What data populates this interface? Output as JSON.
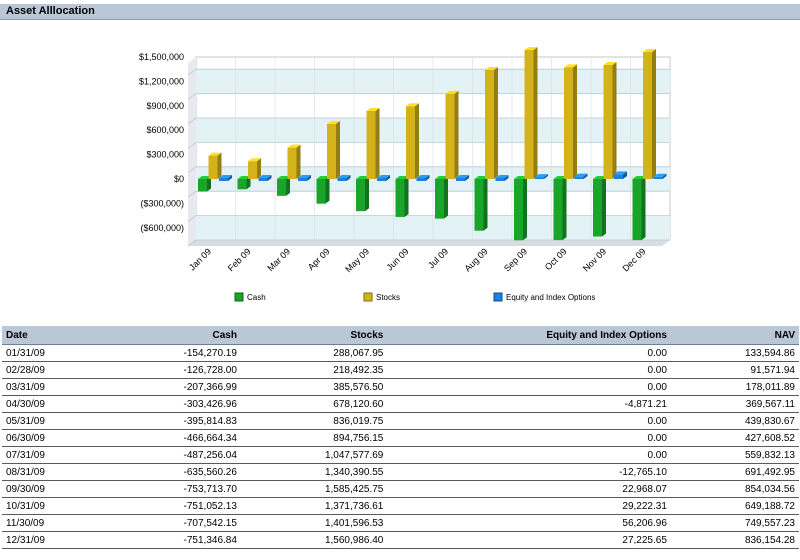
{
  "section_title": "Asset Alllocation",
  "chart_data": {
    "type": "bar",
    "categories": [
      "Jan 09",
      "Feb 09",
      "Mar 09",
      "Apr 09",
      "May 09",
      "Jun 09",
      "Jul 09",
      "Aug 09",
      "Sep 09",
      "Oct 09",
      "Nov 09",
      "Dec 09"
    ],
    "series": [
      {
        "name": "Cash",
        "color": "#1aa52a",
        "values": [
          -154270.19,
          -126728.0,
          -207366.99,
          -303426.96,
          -395814.83,
          -466664.34,
          -487256.04,
          -635560.26,
          -753713.7,
          -751052.13,
          -707542.15,
          -751346.84
        ]
      },
      {
        "name": "Stocks",
        "color": "#d4b21a",
        "values": [
          288067.95,
          218492.35,
          385576.5,
          678120.6,
          836019.75,
          894756.15,
          1047577.69,
          1340390.55,
          1585425.75,
          1371736.61,
          1401596.53,
          1560986.4
        ]
      },
      {
        "name": "Equity and Index Options",
        "color": "#1f7fe0",
        "values": [
          0,
          0,
          0,
          -4871.21,
          0,
          0,
          0,
          -12765.1,
          22968.07,
          29222.31,
          56206.96,
          27225.65
        ]
      }
    ],
    "y_ticks": [
      "$1,500,000",
      "$1,200,000",
      "$900,000",
      "$600,000",
      "$300,000",
      "$0",
      "($300,000)",
      "($600,000)"
    ],
    "ylim": [
      -750000,
      1500000
    ],
    "grid": true,
    "legend_position": "bottom"
  },
  "table": {
    "headers": [
      "Date",
      "Cash",
      "Stocks",
      "Equity and Index Options",
      "NAV"
    ],
    "rows": [
      [
        "01/31/09",
        "-154,270.19",
        "288,067.95",
        "0.00",
        "133,594.86"
      ],
      [
        "02/28/09",
        "-126,728.00",
        "218,492.35",
        "0.00",
        "91,571.94"
      ],
      [
        "03/31/09",
        "-207,366.99",
        "385,576.50",
        "0.00",
        "178,011.89"
      ],
      [
        "04/30/09",
        "-303,426.96",
        "678,120.60",
        "-4,871.21",
        "369,567.11"
      ],
      [
        "05/31/09",
        "-395,814.83",
        "836,019.75",
        "0.00",
        "439,830.67"
      ],
      [
        "06/30/09",
        "-466,664.34",
        "894,756.15",
        "0.00",
        "427,608.52"
      ],
      [
        "07/31/09",
        "-487,256.04",
        "1,047,577.69",
        "0.00",
        "559,832.13"
      ],
      [
        "08/31/09",
        "-635,560.26",
        "1,340,390.55",
        "-12,765.10",
        "691,492.95"
      ],
      [
        "09/30/09",
        "-753,713.70",
        "1,585,425.75",
        "22,968.07",
        "854,034.56"
      ],
      [
        "10/31/09",
        "-751,052.13",
        "1,371,736.61",
        "29,222.31",
        "649,188.72"
      ],
      [
        "11/30/09",
        "-707,542.15",
        "1,401,596.53",
        "56,206.96",
        "749,557.23"
      ],
      [
        "12/31/09",
        "-751,346.84",
        "1,560,986.40",
        "27,225.65",
        "836,154.28"
      ]
    ]
  }
}
